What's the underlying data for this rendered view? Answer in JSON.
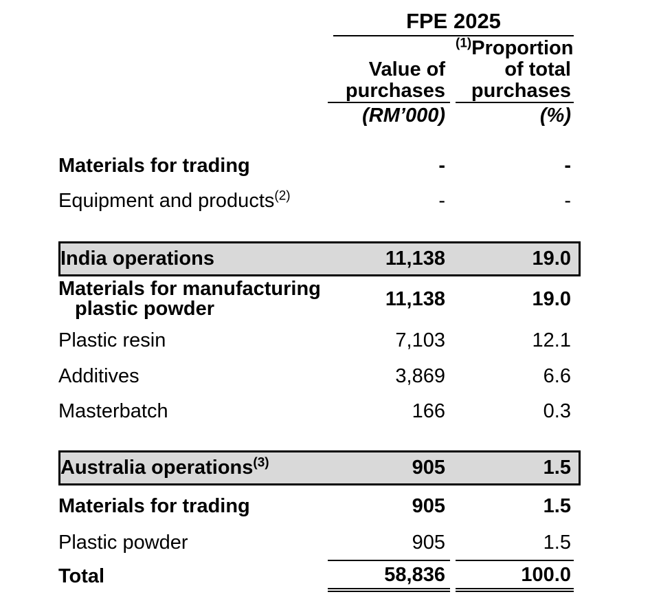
{
  "table": {
    "period_header": "FPE 2025",
    "columns": {
      "value": {
        "header_lines": [
          "Value of",
          "purchases"
        ],
        "unit": "(RM’000)"
      },
      "proportion": {
        "footnote": "(1)",
        "header_lines": [
          "Proportion",
          "of total",
          "purchases"
        ],
        "unit": "(%)"
      }
    },
    "rows": [
      {
        "label": "Materials for trading",
        "value": "-",
        "proportion": "-",
        "emphasis": "bold"
      },
      {
        "label": "Equipment and products",
        "footnote": "(2)",
        "value": "-",
        "proportion": "-",
        "emphasis": "regular"
      },
      {
        "label": "India operations",
        "value": "11,138",
        "proportion": "19.0",
        "emphasis": "bold",
        "highlighted": true
      },
      {
        "label": "Materials for manufacturing",
        "label_line2": "plastic powder",
        "value": "11,138",
        "proportion": "19.0",
        "emphasis": "bold"
      },
      {
        "label": "Plastic resin",
        "value": "7,103",
        "proportion": "12.1",
        "emphasis": "regular"
      },
      {
        "label": "Additives",
        "value": "3,869",
        "proportion": "6.6",
        "emphasis": "regular"
      },
      {
        "label": "Masterbatch",
        "value": "166",
        "proportion": "0.3",
        "emphasis": "regular"
      },
      {
        "label": "Australia operations",
        "footnote": "(3)",
        "value": "905",
        "proportion": "1.5",
        "emphasis": "bold",
        "highlighted": true
      },
      {
        "label": "Materials for trading",
        "value": "905",
        "proportion": "1.5",
        "emphasis": "bold"
      },
      {
        "label": "Plastic powder",
        "value": "905",
        "proportion": "1.5",
        "emphasis": "regular"
      }
    ],
    "total_row": {
      "label": "Total",
      "value": "58,836",
      "proportion": "100.0"
    }
  },
  "colors": {
    "highlight_row_bg": "#d9d9d9",
    "rule": "#000000",
    "text": "#000000",
    "background": "#ffffff"
  }
}
